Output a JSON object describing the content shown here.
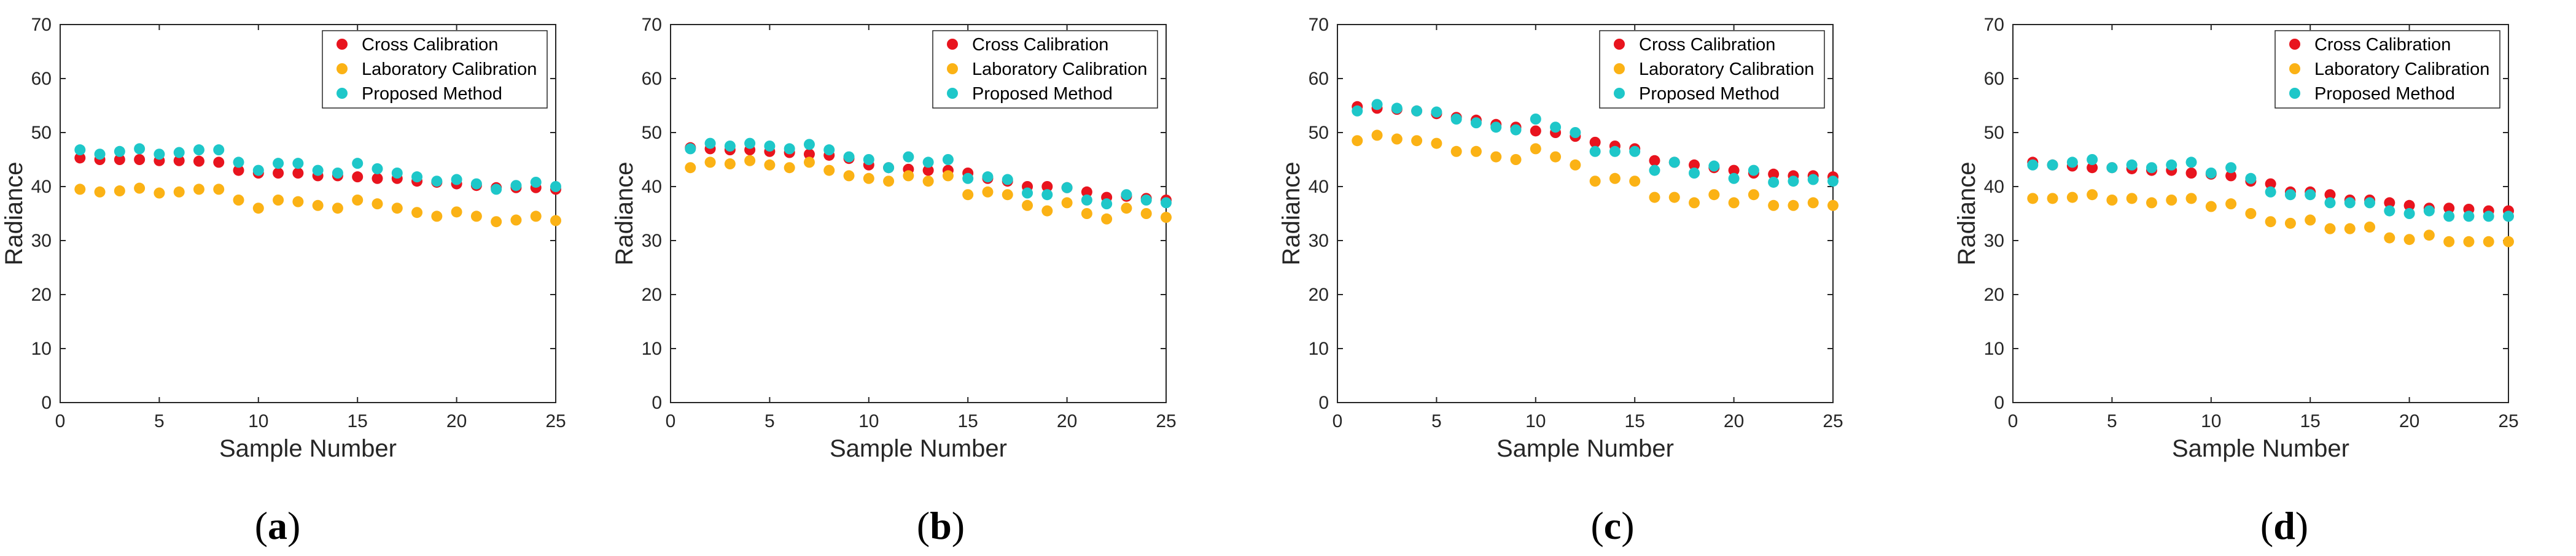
{
  "figure": {
    "panels": [
      "(a)",
      "(b)",
      "(c)",
      "(d)"
    ]
  },
  "colors": {
    "cross": "#e8141e",
    "lab": "#fbb215",
    "proposed": "#1ec7c9",
    "axis": "#262626"
  },
  "chart_data": [
    {
      "type": "scatter",
      "panel": "(a)",
      "title": "",
      "xlabel": "Sample Number",
      "ylabel": "Radiance",
      "xlim": [
        0,
        25
      ],
      "ylim": [
        0,
        70
      ],
      "xticks": [
        "0",
        "5",
        "10",
        "15",
        "20",
        "25"
      ],
      "yticks": [
        "0",
        "10",
        "20",
        "30",
        "40",
        "50",
        "60",
        "70"
      ],
      "legend_position": "top-right",
      "x": [
        1,
        2,
        3,
        4,
        5,
        6,
        7,
        8,
        9,
        10,
        11,
        12,
        13,
        14,
        15,
        16,
        17,
        18,
        19,
        20,
        21,
        22,
        23,
        24,
        25
      ],
      "series": [
        {
          "name": "Cross Calibration",
          "values": [
            45.3,
            45.0,
            45.0,
            45.0,
            44.8,
            44.8,
            44.7,
            44.5,
            43.0,
            42.5,
            42.5,
            42.5,
            42.0,
            42.0,
            41.8,
            41.5,
            41.5,
            41.0,
            40.8,
            40.5,
            40.2,
            39.8,
            39.8,
            39.8,
            39.5
          ]
        },
        {
          "name": "Laboratory Calibration",
          "values": [
            39.5,
            39.0,
            39.2,
            39.7,
            38.8,
            39.0,
            39.5,
            39.5,
            37.5,
            36.0,
            37.5,
            37.2,
            36.5,
            36.0,
            37.5,
            36.8,
            36.0,
            35.2,
            34.5,
            35.3,
            34.5,
            33.5,
            33.8,
            34.5,
            33.7
          ]
        },
        {
          "name": "Proposed Method",
          "values": [
            46.8,
            46.0,
            46.5,
            47.0,
            46.0,
            46.3,
            46.8,
            46.8,
            44.5,
            43.0,
            44.3,
            44.3,
            43.0,
            42.5,
            44.3,
            43.3,
            42.5,
            41.8,
            41.0,
            41.3,
            40.5,
            39.5,
            40.2,
            40.8,
            40.0
          ]
        }
      ]
    },
    {
      "type": "scatter",
      "panel": "(b)",
      "title": "",
      "xlabel": "Sample Number",
      "ylabel": "Radiance",
      "xlim": [
        0,
        25
      ],
      "ylim": [
        0,
        70
      ],
      "xticks": [
        "0",
        "5",
        "10",
        "15",
        "20",
        "25"
      ],
      "yticks": [
        "0",
        "10",
        "20",
        "30",
        "40",
        "50",
        "60",
        "70"
      ],
      "legend_position": "top-right",
      "x": [
        1,
        2,
        3,
        4,
        5,
        6,
        7,
        8,
        9,
        10,
        11,
        12,
        13,
        14,
        15,
        16,
        17,
        18,
        19,
        20,
        21,
        22,
        23,
        24,
        25
      ],
      "series": [
        {
          "name": "Cross Calibration",
          "values": [
            47.2,
            47.0,
            46.8,
            46.8,
            46.5,
            46.3,
            46.0,
            45.8,
            45.2,
            44.0,
            43.5,
            43.2,
            43.0,
            43.0,
            42.5,
            41.5,
            41.0,
            40.0,
            40.0,
            39.8,
            39.0,
            38.0,
            38.2,
            37.8,
            37.5
          ]
        },
        {
          "name": "Laboratory Calibration",
          "values": [
            43.5,
            44.5,
            44.2,
            44.8,
            44.0,
            43.5,
            44.5,
            43.0,
            42.0,
            41.5,
            41.0,
            42.0,
            41.0,
            42.0,
            38.5,
            39.0,
            38.5,
            36.5,
            35.5,
            37.0,
            35.0,
            34.0,
            36.0,
            35.0,
            34.3
          ]
        },
        {
          "name": "Proposed Method",
          "values": [
            47.0,
            48.0,
            47.5,
            48.0,
            47.5,
            47.0,
            47.8,
            46.8,
            45.5,
            45.0,
            43.5,
            45.5,
            44.5,
            45.0,
            41.5,
            41.8,
            41.3,
            38.8,
            38.5,
            39.8,
            37.5,
            36.8,
            38.5,
            37.5,
            37.0
          ]
        }
      ]
    },
    {
      "type": "scatter",
      "panel": "(c)",
      "title": "",
      "xlabel": "Sample Number",
      "ylabel": "Radiance",
      "xlim": [
        0,
        25
      ],
      "ylim": [
        0,
        70
      ],
      "xticks": [
        "0",
        "5",
        "10",
        "15",
        "20",
        "25"
      ],
      "yticks": [
        "0",
        "10",
        "20",
        "30",
        "40",
        "50",
        "60",
        "70"
      ],
      "legend_position": "top-right",
      "x": [
        1,
        2,
        3,
        4,
        5,
        6,
        7,
        8,
        9,
        10,
        11,
        12,
        13,
        14,
        15,
        16,
        17,
        18,
        19,
        20,
        21,
        22,
        23,
        24,
        25
      ],
      "series": [
        {
          "name": "Cross Calibration",
          "values": [
            54.8,
            54.5,
            54.3,
            54.0,
            53.5,
            52.8,
            52.3,
            51.5,
            51.0,
            50.3,
            50.0,
            49.3,
            48.2,
            47.5,
            47.0,
            44.8,
            44.5,
            44.0,
            43.5,
            43.0,
            42.5,
            42.3,
            42.0,
            42.0,
            41.8
          ]
        },
        {
          "name": "Laboratory Calibration",
          "values": [
            48.5,
            49.5,
            48.8,
            48.5,
            48.0,
            46.5,
            46.5,
            45.5,
            45.0,
            47.0,
            45.5,
            44.0,
            41.0,
            41.5,
            41.0,
            38.0,
            38.0,
            37.0,
            38.5,
            37.0,
            38.5,
            36.5,
            36.5,
            37.0,
            36.5
          ]
        },
        {
          "name": "Proposed Method",
          "values": [
            54.0,
            55.2,
            54.5,
            54.0,
            53.8,
            52.5,
            51.8,
            51.0,
            50.5,
            52.5,
            51.0,
            50.0,
            46.5,
            46.5,
            46.5,
            43.0,
            44.5,
            42.5,
            43.8,
            41.5,
            43.0,
            40.8,
            41.0,
            41.3,
            41.0
          ]
        }
      ]
    },
    {
      "type": "scatter",
      "panel": "(d)",
      "title": "",
      "xlabel": "Sample Number",
      "ylabel": "Radiance",
      "xlim": [
        0,
        25
      ],
      "ylim": [
        0,
        70
      ],
      "xticks": [
        "0",
        "5",
        "10",
        "15",
        "20",
        "25"
      ],
      "yticks": [
        "0",
        "10",
        "20",
        "30",
        "40",
        "50",
        "60",
        "70"
      ],
      "legend_position": "top-right",
      "x": [
        1,
        2,
        3,
        4,
        5,
        6,
        7,
        8,
        9,
        10,
        11,
        12,
        13,
        14,
        15,
        16,
        17,
        18,
        19,
        20,
        21,
        22,
        23,
        24,
        25
      ],
      "series": [
        {
          "name": "Cross Calibration",
          "values": [
            44.5,
            44.0,
            43.8,
            43.5,
            43.5,
            43.3,
            43.0,
            43.0,
            42.5,
            42.3,
            42.0,
            41.0,
            40.5,
            39.0,
            39.0,
            38.5,
            37.5,
            37.5,
            37.0,
            36.5,
            36.0,
            36.0,
            35.8,
            35.5,
            35.5
          ]
        },
        {
          "name": "Laboratory Calibration",
          "values": [
            37.8,
            37.8,
            38.0,
            38.5,
            37.5,
            37.8,
            37.0,
            37.5,
            37.8,
            36.3,
            36.8,
            35.0,
            33.5,
            33.2,
            33.8,
            32.2,
            32.2,
            32.5,
            30.5,
            30.2,
            31.0,
            29.8,
            29.8,
            29.8,
            29.8
          ]
        },
        {
          "name": "Proposed Method",
          "values": [
            44.0,
            44.0,
            44.5,
            45.0,
            43.5,
            44.0,
            43.5,
            44.0,
            44.5,
            42.5,
            43.5,
            41.5,
            39.0,
            38.5,
            38.5,
            37.0,
            37.0,
            37.0,
            35.5,
            35.0,
            35.5,
            34.5,
            34.5,
            34.5,
            34.5
          ]
        }
      ]
    }
  ]
}
